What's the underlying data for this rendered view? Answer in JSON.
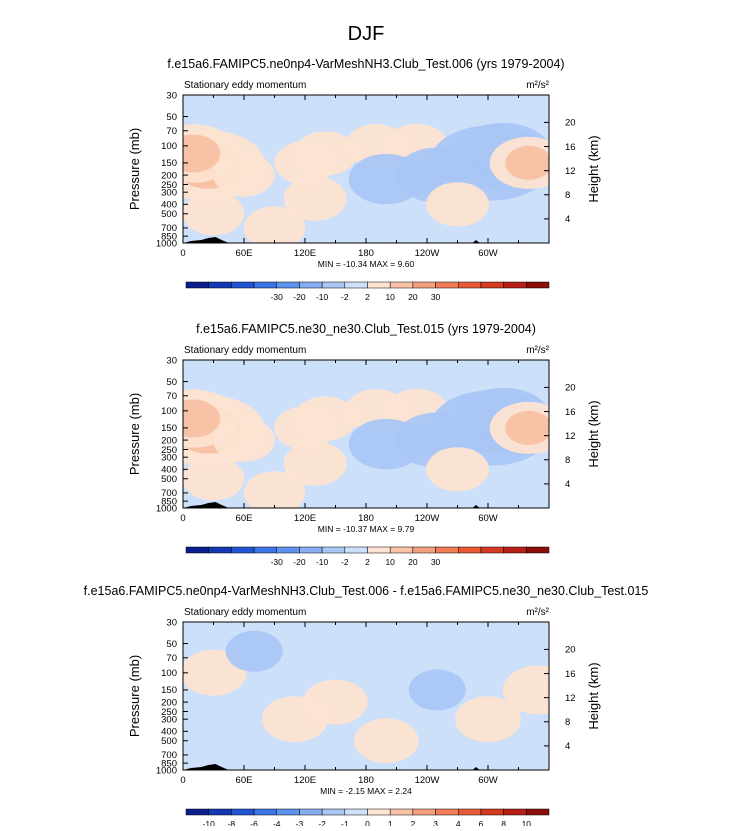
{
  "page_title": "DJF",
  "colors": {
    "axis": "#000000",
    "topo": "#000000",
    "bg": "#ffffff"
  },
  "chart_data": [
    {
      "type": "heatmap",
      "title": "f.e15a6.FAMIPC5.ne0np4-VarMeshNH3.Club_Test.006 (yrs 1979-2004)",
      "subtitle": "Stationary eddy momentum",
      "units_label": "m²/s²",
      "ylabel": "Pressure (mb)",
      "right_label": "Height (km)",
      "x_ticks": [
        {
          "v": 0,
          "t": "0"
        },
        {
          "v": 60,
          "t": "60E"
        },
        {
          "v": 120,
          "t": "120E"
        },
        {
          "v": 180,
          "t": "180"
        },
        {
          "v": 240,
          "t": "120W"
        },
        {
          "v": 300,
          "t": "60W"
        }
      ],
      "xlim": [
        0,
        360
      ],
      "y_ticks": [
        30,
        50,
        70,
        100,
        150,
        200,
        250,
        300,
        400,
        500,
        700,
        850,
        1000
      ],
      "ylim": [
        30,
        1000
      ],
      "height_ticks": [
        4,
        8,
        12,
        16,
        20
      ],
      "stats": "MIN = -10.34   MAX =   9.60",
      "colorbar": {
        "labels": [
          "-30",
          "-20",
          "-10",
          "-2",
          "2",
          "10",
          "20",
          "30"
        ],
        "colors": [
          "#0a1f8c",
          "#1438b4",
          "#1f55d2",
          "#3a74e6",
          "#5f92ee",
          "#86aef2",
          "#aac6f5",
          "#cce0fa",
          "#fde3d1",
          "#f8c2a6",
          "#f4a07c",
          "#ee7d58",
          "#e75a35",
          "#d5391f",
          "#b51f16",
          "#8a0f0b"
        ]
      },
      "field": [
        {
          "lon": 0,
          "p": 150,
          "v": 1.6
        },
        {
          "lon": 25,
          "p": 160,
          "v": 2.2
        },
        {
          "lon": 10,
          "p": 120,
          "v": 1.4
        },
        {
          "lon": 60,
          "p": 200,
          "v": 0.45
        },
        {
          "lon": 120,
          "p": 150,
          "v": 0.45
        },
        {
          "lon": 140,
          "p": 120,
          "v": 0.5
        },
        {
          "lon": 190,
          "p": 100,
          "v": 0.45
        },
        {
          "lon": 230,
          "p": 100,
          "v": 0.5
        },
        {
          "lon": 250,
          "p": 200,
          "v": -1.2
        },
        {
          "lon": 303,
          "p": 150,
          "v": -2.8
        },
        {
          "lon": 315,
          "p": 120,
          "v": -1.6
        },
        {
          "lon": 340,
          "p": 150,
          "v": 1.0
        },
        {
          "lon": 200,
          "p": 220,
          "v": -0.9
        },
        {
          "lon": 130,
          "p": 350,
          "v": 0.5
        },
        {
          "lon": 270,
          "p": 400,
          "v": 0.5
        },
        {
          "lon": 90,
          "p": 700,
          "v": 0.45
        },
        {
          "lon": 30,
          "p": 500,
          "v": 0.45
        }
      ]
    },
    {
      "type": "heatmap",
      "title": "f.e15a6.FAMIPC5.ne30_ne30.Club_Test.015 (yrs 1979-2004)",
      "subtitle": "Stationary eddy momentum",
      "units_label": "m²/s²",
      "ylabel": "Pressure (mb)",
      "right_label": "Height (km)",
      "x_ticks": [
        {
          "v": 0,
          "t": "0"
        },
        {
          "v": 60,
          "t": "60E"
        },
        {
          "v": 120,
          "t": "120E"
        },
        {
          "v": 180,
          "t": "180"
        },
        {
          "v": 240,
          "t": "120W"
        },
        {
          "v": 300,
          "t": "60W"
        }
      ],
      "xlim": [
        0,
        360
      ],
      "y_ticks": [
        30,
        50,
        70,
        100,
        150,
        200,
        250,
        300,
        400,
        500,
        700,
        850,
        1000
      ],
      "ylim": [
        30,
        1000
      ],
      "height_ticks": [
        4,
        8,
        12,
        16,
        20
      ],
      "stats": "MIN = -10.37   MAX =   9.79",
      "colorbar": {
        "labels": [
          "-30",
          "-20",
          "-10",
          "-2",
          "2",
          "10",
          "20",
          "30"
        ],
        "colors": [
          "#0a1f8c",
          "#1438b4",
          "#1f55d2",
          "#3a74e6",
          "#5f92ee",
          "#86aef2",
          "#aac6f5",
          "#cce0fa",
          "#fde3d1",
          "#f8c2a6",
          "#f4a07c",
          "#ee7d58",
          "#e75a35",
          "#d5391f",
          "#b51f16",
          "#8a0f0b"
        ]
      },
      "field": [
        {
          "lon": 0,
          "p": 150,
          "v": 1.7
        },
        {
          "lon": 25,
          "p": 160,
          "v": 2.2
        },
        {
          "lon": 10,
          "p": 120,
          "v": 1.4
        },
        {
          "lon": 60,
          "p": 200,
          "v": 0.45
        },
        {
          "lon": 120,
          "p": 150,
          "v": 0.45
        },
        {
          "lon": 140,
          "p": 120,
          "v": 0.5
        },
        {
          "lon": 190,
          "p": 100,
          "v": 0.45
        },
        {
          "lon": 230,
          "p": 100,
          "v": 0.5
        },
        {
          "lon": 250,
          "p": 200,
          "v": -1.2
        },
        {
          "lon": 303,
          "p": 150,
          "v": -2.8
        },
        {
          "lon": 315,
          "p": 120,
          "v": -1.6
        },
        {
          "lon": 340,
          "p": 150,
          "v": 1.0
        },
        {
          "lon": 200,
          "p": 220,
          "v": -0.9
        },
        {
          "lon": 130,
          "p": 350,
          "v": 0.5
        },
        {
          "lon": 270,
          "p": 400,
          "v": 0.5
        },
        {
          "lon": 90,
          "p": 700,
          "v": 0.45
        },
        {
          "lon": 30,
          "p": 500,
          "v": 0.45
        }
      ]
    },
    {
      "type": "heatmap",
      "title": "f.e15a6.FAMIPC5.ne0np4-VarMeshNH3.Club_Test.006 - f.e15a6.FAMIPC5.ne30_ne30.Club_Test.015",
      "subtitle": "Stationary eddy momentum",
      "units_label": "m²/s²",
      "ylabel": "Pressure (mb)",
      "right_label": "Height (km)",
      "x_ticks": [
        {
          "v": 0,
          "t": "0"
        },
        {
          "v": 60,
          "t": "60E"
        },
        {
          "v": 120,
          "t": "120E"
        },
        {
          "v": 180,
          "t": "180"
        },
        {
          "v": 240,
          "t": "120W"
        },
        {
          "v": 300,
          "t": "60W"
        }
      ],
      "xlim": [
        0,
        360
      ],
      "y_ticks": [
        30,
        50,
        70,
        100,
        150,
        200,
        250,
        300,
        400,
        500,
        700,
        850,
        1000
      ],
      "ylim": [
        30,
        1000
      ],
      "height_ticks": [
        4,
        8,
        12,
        16,
        20
      ],
      "stats": "MIN =  -2.15   MAX =   2.24",
      "colorbar": {
        "labels": [
          "-10",
          "-8",
          "-6",
          "-4",
          "-3",
          "-2",
          "-1",
          "0",
          "1",
          "2",
          "3",
          "4",
          "6",
          "8",
          "10"
        ],
        "colors": [
          "#0a1f8c",
          "#1438b4",
          "#1f55d2",
          "#3a74e6",
          "#5f92ee",
          "#86aef2",
          "#aac6f5",
          "#cce0fa",
          "#fde3d1",
          "#f8c2a6",
          "#f4a07c",
          "#ee7d58",
          "#e75a35",
          "#d5391f",
          "#b51f16",
          "#8a0f0b"
        ]
      },
      "field": [
        {
          "lon": 30,
          "p": 100,
          "v": 0.6
        },
        {
          "lon": 110,
          "p": 300,
          "v": 0.6
        },
        {
          "lon": 150,
          "p": 200,
          "v": 0.55
        },
        {
          "lon": 200,
          "p": 500,
          "v": 0.55
        },
        {
          "lon": 300,
          "p": 300,
          "v": 0.6
        },
        {
          "lon": 350,
          "p": 150,
          "v": 0.8
        },
        {
          "lon": 70,
          "p": 60,
          "v": -0.3
        },
        {
          "lon": 250,
          "p": 150,
          "v": -0.3
        }
      ]
    }
  ]
}
